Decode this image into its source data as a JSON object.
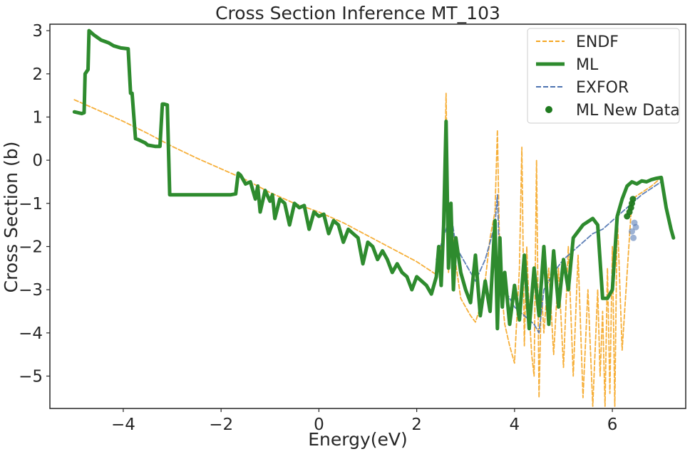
{
  "chart_data": {
    "type": "line",
    "title": "Cross Section Inference MT_103",
    "xlabel": "Energy(eV)",
    "ylabel": "Cross Section (b)",
    "xlim": [
      -5.5,
      7.5
    ],
    "ylim": [
      -5.75,
      3.15
    ],
    "xticks": [
      -4,
      -2,
      0,
      2,
      4,
      6
    ],
    "yticks": [
      -5,
      -4,
      -3,
      -2,
      -1,
      0,
      1,
      2,
      3
    ],
    "tick_labels_x": [
      "−4",
      "−2",
      "0",
      "2",
      "4",
      "6"
    ],
    "tick_labels_y": [
      "−5",
      "−4",
      "−3",
      "−2",
      "−1",
      "0",
      "1",
      "2",
      "3"
    ],
    "grid": false,
    "legend_position": "top-right",
    "colors": {
      "ENDF": "#f5a623",
      "ML": "#2e8b2e",
      "EXFOR": "#4c72b0",
      "ML New Data": "#1f7a1f"
    },
    "series": [
      {
        "name": "ENDF",
        "style": "dashed",
        "x": [
          -5.0,
          -4.5,
          -4.0,
          -3.5,
          -3.0,
          -2.5,
          -2.0,
          -1.5,
          -1.0,
          -0.5,
          0.0,
          0.5,
          1.0,
          1.5,
          2.0,
          2.4,
          2.55,
          2.6,
          2.65,
          2.7,
          2.8,
          2.9,
          3.0,
          3.1,
          3.2,
          3.3,
          3.4,
          3.5,
          3.6,
          3.65,
          3.7,
          3.75,
          3.8,
          3.9,
          4.0,
          4.1,
          4.15,
          4.2,
          4.25,
          4.3,
          4.35,
          4.4,
          4.45,
          4.5,
          4.55,
          4.6,
          4.7,
          4.8,
          4.9,
          5.0,
          5.1,
          5.2,
          5.3,
          5.4,
          5.5,
          5.6,
          5.7,
          5.75,
          5.8,
          5.85,
          5.9,
          5.95,
          6.0,
          6.05,
          6.1,
          6.2,
          6.4,
          6.6,
          6.8,
          7.0
        ],
        "y": [
          1.4,
          1.15,
          0.9,
          0.62,
          0.32,
          0.05,
          -0.2,
          -0.45,
          -0.75,
          -1.0,
          -1.2,
          -1.45,
          -1.75,
          -2.05,
          -2.35,
          -2.65,
          -1.6,
          1.55,
          -2.6,
          -1.2,
          -2.4,
          -3.2,
          -3.4,
          -3.6,
          -3.75,
          -3.4,
          -2.8,
          -1.8,
          -1.2,
          0.7,
          -2.5,
          -3.2,
          -3.8,
          -4.3,
          -4.7,
          -2.5,
          0.3,
          -4.3,
          -2.0,
          -3.5,
          -4.5,
          -5.0,
          0.0,
          -5.5,
          -3.0,
          -4.0,
          -2.5,
          -4.5,
          -2.5,
          -4.8,
          -2.0,
          -5.0,
          -2.2,
          -5.5,
          -3.0,
          -5.7,
          -3.0,
          -5.0,
          -3.5,
          -5.7,
          -2.5,
          -5.4,
          -2.0,
          -5.7,
          -1.2,
          -4.4,
          -0.9,
          -0.75,
          -0.6,
          -0.4
        ]
      },
      {
        "name": "ML",
        "style": "solid",
        "x": [
          -5.0,
          -4.85,
          -4.8,
          -4.78,
          -4.72,
          -4.7,
          -4.6,
          -4.45,
          -4.3,
          -4.2,
          -4.05,
          -3.9,
          -3.85,
          -3.82,
          -3.75,
          -3.7,
          -3.55,
          -3.5,
          -3.35,
          -3.25,
          -3.2,
          -3.17,
          -3.1,
          -3.05,
          -2.5,
          -1.8,
          -1.7,
          -1.65,
          -1.6,
          -1.5,
          -1.4,
          -1.3,
          -1.25,
          -1.2,
          -1.1,
          -1.0,
          -0.95,
          -0.9,
          -0.8,
          -0.7,
          -0.6,
          -0.5,
          -0.4,
          -0.3,
          -0.2,
          -0.1,
          0.0,
          0.1,
          0.2,
          0.3,
          0.4,
          0.5,
          0.6,
          0.7,
          0.8,
          0.9,
          1.0,
          1.1,
          1.2,
          1.3,
          1.4,
          1.5,
          1.6,
          1.7,
          1.8,
          1.9,
          2.0,
          2.1,
          2.2,
          2.3,
          2.4,
          2.45,
          2.5,
          2.55,
          2.6,
          2.65,
          2.7,
          2.75,
          2.8,
          2.9,
          3.0,
          3.1,
          3.2,
          3.3,
          3.4,
          3.5,
          3.6,
          3.65,
          3.7,
          3.75,
          3.8,
          3.9,
          4.0,
          4.1,
          4.2,
          4.3,
          4.4,
          4.5,
          4.6,
          4.7,
          4.8,
          4.9,
          5.0,
          5.1,
          5.2,
          5.4,
          5.6,
          5.7,
          5.8,
          5.9,
          6.0,
          6.1,
          6.2,
          6.3,
          6.4,
          6.5,
          6.6,
          6.7,
          6.8,
          6.9,
          7.0,
          7.1,
          7.2,
          7.25
        ],
        "y": [
          1.12,
          1.08,
          1.1,
          2.0,
          2.1,
          3.0,
          2.9,
          2.78,
          2.72,
          2.65,
          2.6,
          2.58,
          1.55,
          1.55,
          0.5,
          0.48,
          0.4,
          0.35,
          0.32,
          0.32,
          1.3,
          1.3,
          1.28,
          -0.8,
          -0.8,
          -0.8,
          -0.78,
          -0.3,
          -0.35,
          -0.55,
          -0.5,
          -0.9,
          -0.6,
          -1.2,
          -0.7,
          -0.95,
          -0.8,
          -1.35,
          -0.9,
          -1.0,
          -1.5,
          -1.0,
          -1.1,
          -1.05,
          -1.6,
          -1.2,
          -1.3,
          -1.25,
          -1.7,
          -1.4,
          -1.5,
          -1.9,
          -1.6,
          -1.7,
          -1.8,
          -2.4,
          -1.9,
          -2.0,
          -2.3,
          -2.1,
          -2.3,
          -2.6,
          -2.4,
          -2.6,
          -2.7,
          -3.0,
          -2.7,
          -2.8,
          -2.9,
          -3.1,
          -2.7,
          -2.0,
          -2.9,
          -1.5,
          0.9,
          -2.5,
          -1.0,
          -3.0,
          -1.8,
          -2.6,
          -3.0,
          -3.3,
          -2.2,
          -3.6,
          -2.8,
          -3.5,
          -1.4,
          -3.9,
          -1.8,
          -3.4,
          -2.6,
          -3.8,
          -2.9,
          -3.7,
          -2.2,
          -3.9,
          -2.5,
          -3.6,
          -2.0,
          -3.8,
          -2.1,
          -3.4,
          -2.3,
          -3.0,
          -1.8,
          -1.5,
          -1.35,
          -1.5,
          -3.2,
          -3.2,
          -3.0,
          -1.3,
          -0.9,
          -0.6,
          -0.5,
          -0.55,
          -0.48,
          -0.5,
          -0.45,
          -0.42,
          -0.4,
          -1.1,
          -1.6,
          -1.8
        ]
      },
      {
        "name": "EXFOR",
        "style": "dashed",
        "x": [
          2.4,
          2.6,
          2.7,
          2.8,
          3.0,
          3.2,
          3.4,
          3.6,
          3.65,
          3.7,
          3.8,
          4.0,
          4.2,
          4.4,
          4.5,
          4.6,
          4.8,
          5.0,
          5.2,
          5.4,
          5.6,
          5.8,
          6.0,
          6.2,
          6.4,
          6.6,
          6.8,
          7.0
        ],
        "y": [
          -2.3,
          -1.6,
          -1.2,
          -2.0,
          -2.4,
          -2.8,
          -2.3,
          -1.5,
          -0.8,
          -2.6,
          -3.0,
          -3.4,
          -3.6,
          -3.8,
          -4.0,
          -3.0,
          -2.6,
          -2.3,
          -2.1,
          -1.9,
          -1.7,
          -1.6,
          -1.4,
          -1.2,
          -1.0,
          -0.8,
          -0.65,
          -0.5
        ]
      },
      {
        "name": "ML New Data",
        "style": "scatter",
        "x": [
          6.3,
          6.35,
          6.38,
          6.4,
          6.42,
          6.45,
          6.48,
          6.4,
          6.43
        ],
        "y": [
          -1.3,
          -1.2,
          -1.1,
          -1.0,
          -0.9,
          -1.45,
          -1.55,
          -1.65,
          -1.8
        ]
      }
    ]
  }
}
